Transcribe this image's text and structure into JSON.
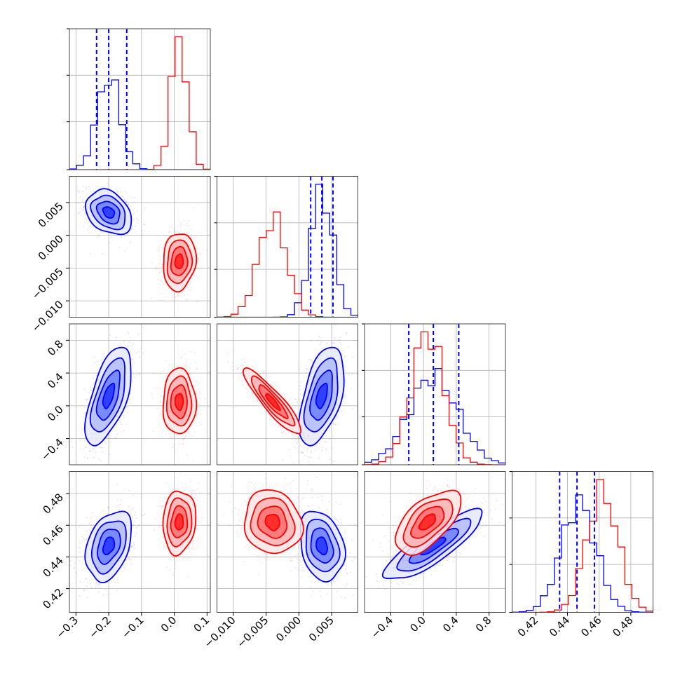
{
  "chart_data": {
    "type": "corner",
    "parameters": [
      {
        "range": [
          -0.32,
          0.11
        ],
        "ticks": [
          -0.3,
          -0.2,
          -0.1,
          0.0,
          0.1
        ],
        "tick_labels": [
          "−0.3",
          "−0.2",
          "−0.1",
          "0.0",
          "0.1"
        ]
      },
      {
        "range": [
          -0.0125,
          0.009
        ],
        "ticks": [
          -0.01,
          -0.005,
          0.0,
          0.005
        ],
        "tick_labels": [
          "−0.010",
          "−0.005",
          "0.000",
          "0.005"
        ]
      },
      {
        "range": [
          -0.72,
          1.0
        ],
        "ticks": [
          -0.4,
          0.0,
          0.4,
          0.8
        ],
        "tick_labels": [
          "−0.4",
          "0.0",
          "0.4",
          "0.8"
        ]
      },
      {
        "range": [
          0.405,
          0.494
        ],
        "ticks": [
          0.42,
          0.44,
          0.46,
          0.48
        ],
        "tick_labels": [
          "0.42",
          "0.44",
          "0.46",
          "0.48"
        ]
      }
    ],
    "series": [
      {
        "color": "#0000ff",
        "mean": [
          -0.2,
          0.0035,
          0.12,
          0.447
        ],
        "sd": [
          0.035,
          0.0017,
          0.3,
          0.011
        ],
        "corr": {
          "0-1": -0.3,
          "0-2": 0.6,
          "0-3": 0.35,
          "1-2": 0.5,
          "1-3": -0.25,
          "2-3": 0.85
        }
      },
      {
        "color": "#ff0000",
        "mean": [
          0.015,
          -0.004,
          0.05,
          0.462
        ],
        "sd": [
          0.025,
          0.0022,
          0.2,
          0.01
        ],
        "corr": {
          "0-1": 0.1,
          "0-2": 0.0,
          "0-3": 0.1,
          "1-2": -0.9,
          "1-3": -0.1,
          "2-3": 0.6
        }
      }
    ],
    "quantile_lines": [
      {
        "panel": 0,
        "color": "#0000ff",
        "values": [
          -0.237,
          -0.2,
          -0.145
        ]
      },
      {
        "panel": 1,
        "color": "#0000ff",
        "values": [
          0.0018,
          0.0035,
          0.0052
        ]
      },
      {
        "panel": 2,
        "color": "#0000ff",
        "values": [
          -0.18,
          0.12,
          0.43
        ]
      },
      {
        "panel": 3,
        "color": "#0000ff",
        "values": [
          0.435,
          0.446,
          0.457
        ]
      }
    ],
    "contour_levels_sigma": [
      0.5,
      1.0,
      1.5,
      2.0
    ],
    "grid": true,
    "colors": {
      "blue": "#0000ff",
      "red": "#ff0000"
    }
  }
}
